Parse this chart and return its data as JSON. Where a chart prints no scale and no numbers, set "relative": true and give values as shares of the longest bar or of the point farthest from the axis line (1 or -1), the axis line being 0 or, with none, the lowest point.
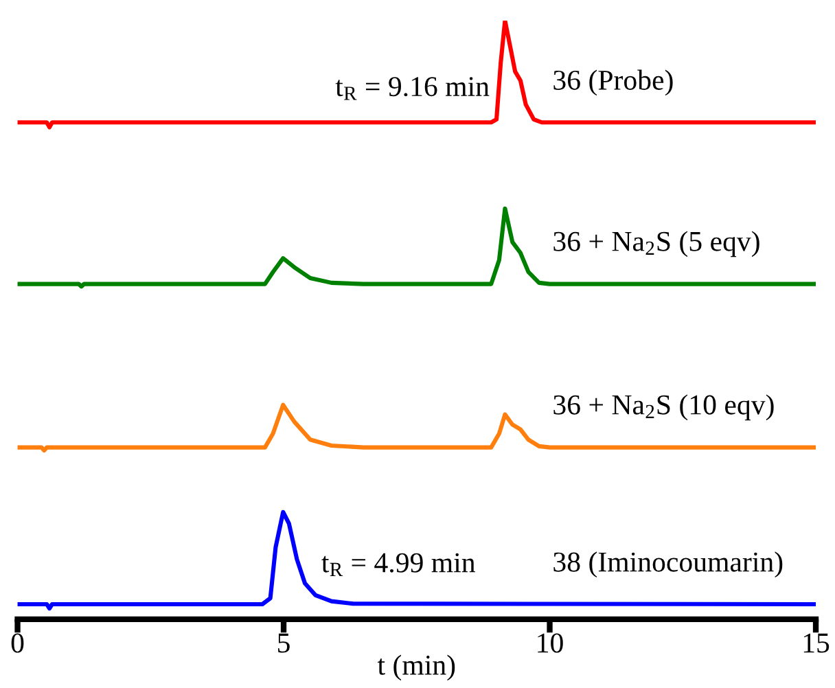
{
  "chart_data": {
    "type": "line",
    "relative": true,
    "xlabel": "t (min)",
    "xlim": [
      0,
      15
    ],
    "xticks": [
      0,
      5,
      10,
      15
    ],
    "grid": false,
    "series": [
      {
        "name": "36 (Probe)",
        "color": "#ff0000",
        "x": [
          0,
          0.55,
          0.6,
          0.65,
          1,
          8.9,
          9.0,
          9.08,
          9.16,
          9.25,
          9.35,
          9.45,
          9.55,
          9.7,
          9.85,
          10,
          15
        ],
        "values": [
          0.83,
          0.83,
          0.822,
          0.83,
          0.83,
          0.83,
          0.835,
          0.93,
          1.0,
          0.96,
          0.915,
          0.9,
          0.86,
          0.835,
          0.83,
          0.83,
          0.83
        ]
      },
      {
        "name": "36 + Na$_{2}$S (5 eqv)",
        "color": "#008000",
        "x": [
          0,
          1.15,
          1.2,
          1.25,
          4.65,
          4.8,
          4.99,
          5.2,
          5.5,
          5.9,
          6.5,
          8.9,
          9.05,
          9.16,
          9.3,
          9.45,
          9.6,
          9.8,
          10,
          15
        ],
        "values": [
          0.56,
          0.56,
          0.556,
          0.56,
          0.56,
          0.58,
          0.603,
          0.588,
          0.57,
          0.562,
          0.56,
          0.56,
          0.6,
          0.686,
          0.63,
          0.612,
          0.58,
          0.562,
          0.56,
          0.56
        ]
      },
      {
        "name": "36 + Na$_{2}$S (10 eqv)",
        "color": "#ff7f0e",
        "x": [
          0,
          0.45,
          0.5,
          0.55,
          4.65,
          4.8,
          4.99,
          5.2,
          5.5,
          5.9,
          6.5,
          8.9,
          9.05,
          9.16,
          9.3,
          9.45,
          9.6,
          9.8,
          10,
          15
        ],
        "values": [
          0.287,
          0.287,
          0.282,
          0.287,
          0.287,
          0.31,
          0.358,
          0.33,
          0.3,
          0.29,
          0.287,
          0.287,
          0.31,
          0.342,
          0.325,
          0.317,
          0.3,
          0.289,
          0.287,
          0.287
        ]
      },
      {
        "name": "38 (Iminocoumarin)",
        "color": "#0000ff",
        "x": [
          0,
          0.55,
          0.6,
          0.65,
          4.6,
          4.75,
          4.85,
          4.99,
          5.1,
          5.25,
          5.4,
          5.6,
          5.9,
          6.3,
          15
        ],
        "values": [
          0.025,
          0.025,
          0.018,
          0.025,
          0.025,
          0.035,
          0.12,
          0.179,
          0.16,
          0.1,
          0.06,
          0.04,
          0.03,
          0.026,
          0.025
        ]
      }
    ],
    "annotations": [
      {
        "text": "t$_{R}$ = 9.16 min",
        "x": 9.16,
        "y": 1.0
      },
      {
        "text": "t$_{R}$ = 4.99 min",
        "x": 4.99,
        "y": 0.179
      }
    ]
  }
}
